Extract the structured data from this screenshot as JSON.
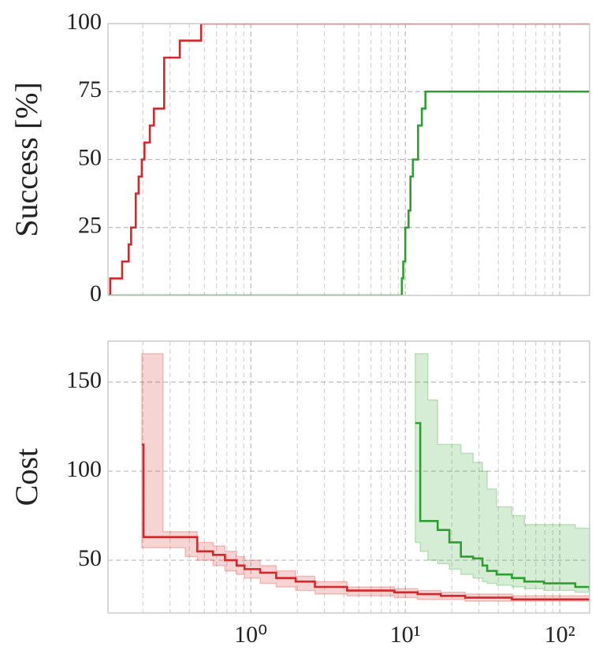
{
  "chart_data": [
    {
      "type": "line",
      "ylabel": "Success [%]",
      "xscale": "log",
      "grid": true,
      "step": "post",
      "xlim": [
        0.119,
        156
      ],
      "ylim": [
        0,
        100
      ],
      "yticks": [
        0,
        25,
        50,
        75,
        100
      ],
      "xticks": [
        1,
        10,
        100
      ],
      "xminorticks": [
        0.2,
        0.3,
        0.4,
        0.5,
        0.6,
        0.7,
        0.8,
        0.9,
        2,
        3,
        4,
        5,
        6,
        7,
        8,
        9,
        20,
        30,
        40,
        50,
        60,
        70,
        80,
        90
      ],
      "series": [
        {
          "color": "#d62728",
          "x": [
            0.119,
            0.123,
            0.147,
            0.162,
            0.168,
            0.18,
            0.188,
            0.197,
            0.205,
            0.222,
            0.236,
            0.275,
            0.347,
            0.477,
            156
          ],
          "values": [
            0,
            6.25,
            12.5,
            18.75,
            25,
            37.5,
            43.75,
            50,
            56.25,
            62.5,
            68.75,
            87.5,
            93.75,
            100,
            100
          ]
        },
        {
          "color": "#2ca02c",
          "x": [
            0.119,
            9.1,
            9.5,
            9.7,
            10,
            10.5,
            10.8,
            11.2,
            12.1,
            12.8,
            13.5,
            156
          ],
          "values": [
            0,
            0,
            6.25,
            12.5,
            25,
            31.25,
            43.75,
            50,
            62.5,
            68.75,
            75,
            75
          ]
        }
      ]
    },
    {
      "type": "line",
      "ylabel": "Cost",
      "xscale": "log",
      "grid": true,
      "step": "post",
      "xlim": [
        0.119,
        156
      ],
      "ylim": [
        20.4,
        173
      ],
      "yticks": [
        50,
        100,
        150
      ],
      "xticks": [
        {
          "value": 1,
          "label": "10⁰"
        },
        {
          "value": 10,
          "label": "10¹"
        },
        {
          "value": 100,
          "label": "10²"
        }
      ],
      "xminorticks": [
        0.2,
        0.3,
        0.4,
        0.5,
        0.6,
        0.7,
        0.8,
        0.9,
        2,
        3,
        4,
        5,
        6,
        7,
        8,
        9,
        20,
        30,
        40,
        50,
        60,
        70,
        80,
        90
      ],
      "series": [
        {
          "color": "#d62728",
          "x": [
            0.197,
            0.202,
            0.27,
            0.377,
            0.45,
            0.57,
            0.68,
            0.81,
            0.91,
            1.15,
            1.46,
            1.95,
            2.6,
            4.2,
            8.5,
            12,
            17,
            24.4,
            49,
            156
          ],
          "values": [
            115,
            63,
            63,
            63,
            55,
            53,
            50,
            47,
            45,
            43,
            40,
            38,
            35,
            33,
            32,
            31,
            30,
            29,
            28,
            28
          ],
          "upper": [
            166,
            166,
            66,
            66,
            60,
            58,
            55,
            52,
            50,
            47,
            44,
            41,
            38,
            35,
            34,
            33,
            32,
            31,
            30,
            30
          ],
          "lower": [
            57,
            57,
            57,
            57,
            52,
            50,
            47,
            44,
            42,
            40,
            37,
            35,
            33,
            31,
            30,
            29,
            28,
            28,
            27,
            27
          ]
        },
        {
          "color": "#2ca02c",
          "x": [
            11.6,
            12.5,
            14,
            16.2,
            19.3,
            22.9,
            27.5,
            31.6,
            33.9,
            39,
            49,
            59,
            79,
            126,
            156
          ],
          "values": [
            127,
            72,
            72,
            67,
            60,
            52,
            51,
            47,
            44,
            42,
            40,
            38,
            37,
            35,
            33
          ],
          "upper": [
            166,
            166,
            140,
            115,
            115,
            110,
            105,
            100,
            90,
            80,
            75,
            70,
            70,
            68,
            67
          ],
          "lower": [
            60,
            60,
            55,
            50,
            48,
            45,
            42,
            40,
            38,
            37,
            36,
            35,
            34,
            33,
            32
          ]
        }
      ]
    }
  ]
}
